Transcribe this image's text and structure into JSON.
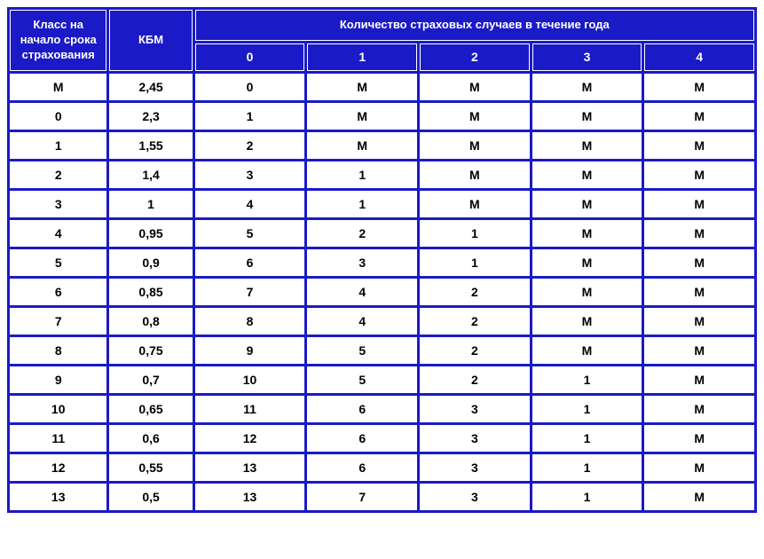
{
  "table": {
    "type": "table",
    "header_bg_color": "#1a1ac7",
    "header_text_color": "#ffffff",
    "cell_bg_color": "#ffffff",
    "cell_text_color": "#000000",
    "border_color": "#1a1ac7",
    "font_family": "Arial",
    "header_fontsize": 14,
    "cell_fontsize": 14,
    "headers": {
      "class_start": "Класс на начало срока страхования",
      "kbm": "КБМ",
      "cases_title": "Количество страховых случаев в течение года",
      "case_cols": [
        "0",
        "1",
        "2",
        "3",
        "4"
      ]
    },
    "column_widths": {
      "class": 110,
      "kbm": 95,
      "case": 127
    },
    "rows": [
      {
        "class": "М",
        "kbm": "2,45",
        "cases": [
          "0",
          "М",
          "М",
          "М",
          "М"
        ]
      },
      {
        "class": "0",
        "kbm": "2,3",
        "cases": [
          "1",
          "М",
          "М",
          "М",
          "М"
        ]
      },
      {
        "class": "1",
        "kbm": "1,55",
        "cases": [
          "2",
          "М",
          "М",
          "М",
          "М"
        ]
      },
      {
        "class": "2",
        "kbm": "1,4",
        "cases": [
          "3",
          "1",
          "М",
          "М",
          "М"
        ]
      },
      {
        "class": "3",
        "kbm": "1",
        "cases": [
          "4",
          "1",
          "М",
          "М",
          "М"
        ]
      },
      {
        "class": "4",
        "kbm": "0,95",
        "cases": [
          "5",
          "2",
          "1",
          "М",
          "М"
        ]
      },
      {
        "class": "5",
        "kbm": "0,9",
        "cases": [
          "6",
          "3",
          "1",
          "М",
          "М"
        ]
      },
      {
        "class": "6",
        "kbm": "0,85",
        "cases": [
          "7",
          "4",
          "2",
          "М",
          "М"
        ]
      },
      {
        "class": "7",
        "kbm": "0,8",
        "cases": [
          "8",
          "4",
          "2",
          "М",
          "М"
        ]
      },
      {
        "class": "8",
        "kbm": "0,75",
        "cases": [
          "9",
          "5",
          "2",
          "М",
          "М"
        ]
      },
      {
        "class": "9",
        "kbm": "0,7",
        "cases": [
          "10",
          "5",
          "2",
          "1",
          "М"
        ]
      },
      {
        "class": "10",
        "kbm": "0,65",
        "cases": [
          "11",
          "6",
          "3",
          "1",
          "М"
        ]
      },
      {
        "class": "11",
        "kbm": "0,6",
        "cases": [
          "12",
          "6",
          "3",
          "1",
          "М"
        ]
      },
      {
        "class": "12",
        "kbm": "0,55",
        "cases": [
          "13",
          "6",
          "3",
          "1",
          "М"
        ]
      },
      {
        "class": "13",
        "kbm": "0,5",
        "cases": [
          "13",
          "7",
          "3",
          "1",
          "М"
        ]
      }
    ]
  }
}
